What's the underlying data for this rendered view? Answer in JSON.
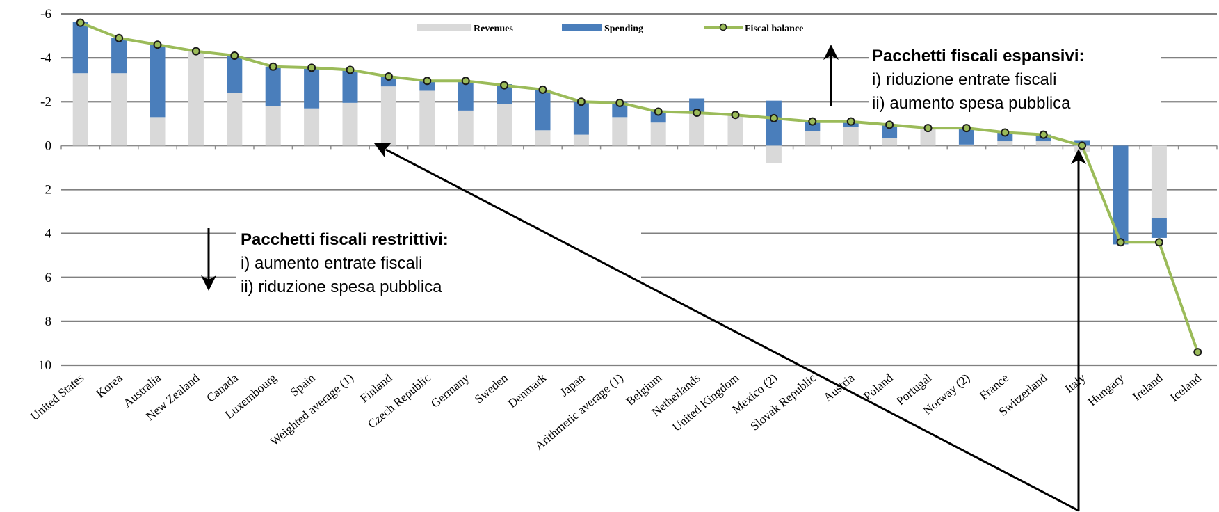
{
  "chart_data": {
    "type": "bar",
    "y_axis_reversed": true,
    "ylim": [
      -6,
      10
    ],
    "yticks": [
      "-6",
      "-4",
      "-2",
      "0",
      "2",
      "4",
      "6",
      "8",
      "10"
    ],
    "grid": true,
    "legend_position": "top-center",
    "categories": [
      "United States",
      "Korea",
      "Australia",
      "New Zealand",
      "Canada",
      "Luxembourg",
      "Spain",
      "Weighted average (1)",
      "Finland",
      "Czech Republic",
      "Germany",
      "Sweden",
      "Denmark",
      "Japan",
      "Arithmetic average (1)",
      "Belgium",
      "Netherlands",
      "United Kingdom",
      "Mexico (2)",
      "Slovak Republic",
      "Austria",
      "Poland",
      "Portugal",
      "Norway (2)",
      "France",
      "Switzerland",
      "Italy",
      "Hungary",
      "Ireland",
      "Iceland"
    ],
    "series": [
      {
        "name": "Revenues",
        "color": "#d9d9d9",
        "values": [
          -3.3,
          -3.3,
          -1.3,
          -4.3,
          -2.4,
          -1.8,
          -1.7,
          -1.95,
          -2.7,
          -2.5,
          -1.6,
          -1.9,
          -0.7,
          -0.5,
          -1.3,
          -1.05,
          -1.45,
          -1.4,
          0.8,
          -0.65,
          -0.85,
          -0.35,
          -0.8,
          -0.05,
          -0.2,
          -0.2,
          0.3,
          0,
          3.3,
          0
        ]
      },
      {
        "name": "Spending",
        "color": "#4a7ebb",
        "values": [
          -2.35,
          -1.6,
          -3.3,
          0,
          -1.7,
          -1.8,
          -1.85,
          -1.5,
          -0.45,
          -0.45,
          -1.35,
          -0.9,
          -1.85,
          -1.5,
          -0.7,
          -0.55,
          -0.7,
          0,
          -2.05,
          -0.45,
          -0.25,
          -0.6,
          0,
          -0.75,
          -0.4,
          -0.3,
          -0.25,
          4.5,
          0.9,
          0
        ]
      },
      {
        "name": "Fiscal balance",
        "color": "#9bbb59",
        "values": [
          -5.6,
          -4.9,
          -4.6,
          -4.3,
          -4.1,
          -3.6,
          -3.55,
          -3.45,
          -3.15,
          -2.95,
          -2.95,
          -2.75,
          -2.55,
          -2.0,
          -1.95,
          -1.55,
          -1.5,
          -1.4,
          -1.25,
          -1.1,
          -1.1,
          -0.95,
          -0.8,
          -0.8,
          -0.6,
          -0.5,
          0,
          4.4,
          4.4,
          9.4
        ]
      }
    ],
    "annotations": {
      "expansive": {
        "title": "Pacchetti fiscali espansivi:",
        "line1": "i) riduzione entrate fiscali",
        "line2": "ii) aumento spesa pubblica"
      },
      "restrictive": {
        "title": "Pacchetti fiscali restrittivi:",
        "line1": "i) aumento entrate fiscali",
        "line2": "ii) riduzione spesa pubblica"
      }
    }
  }
}
